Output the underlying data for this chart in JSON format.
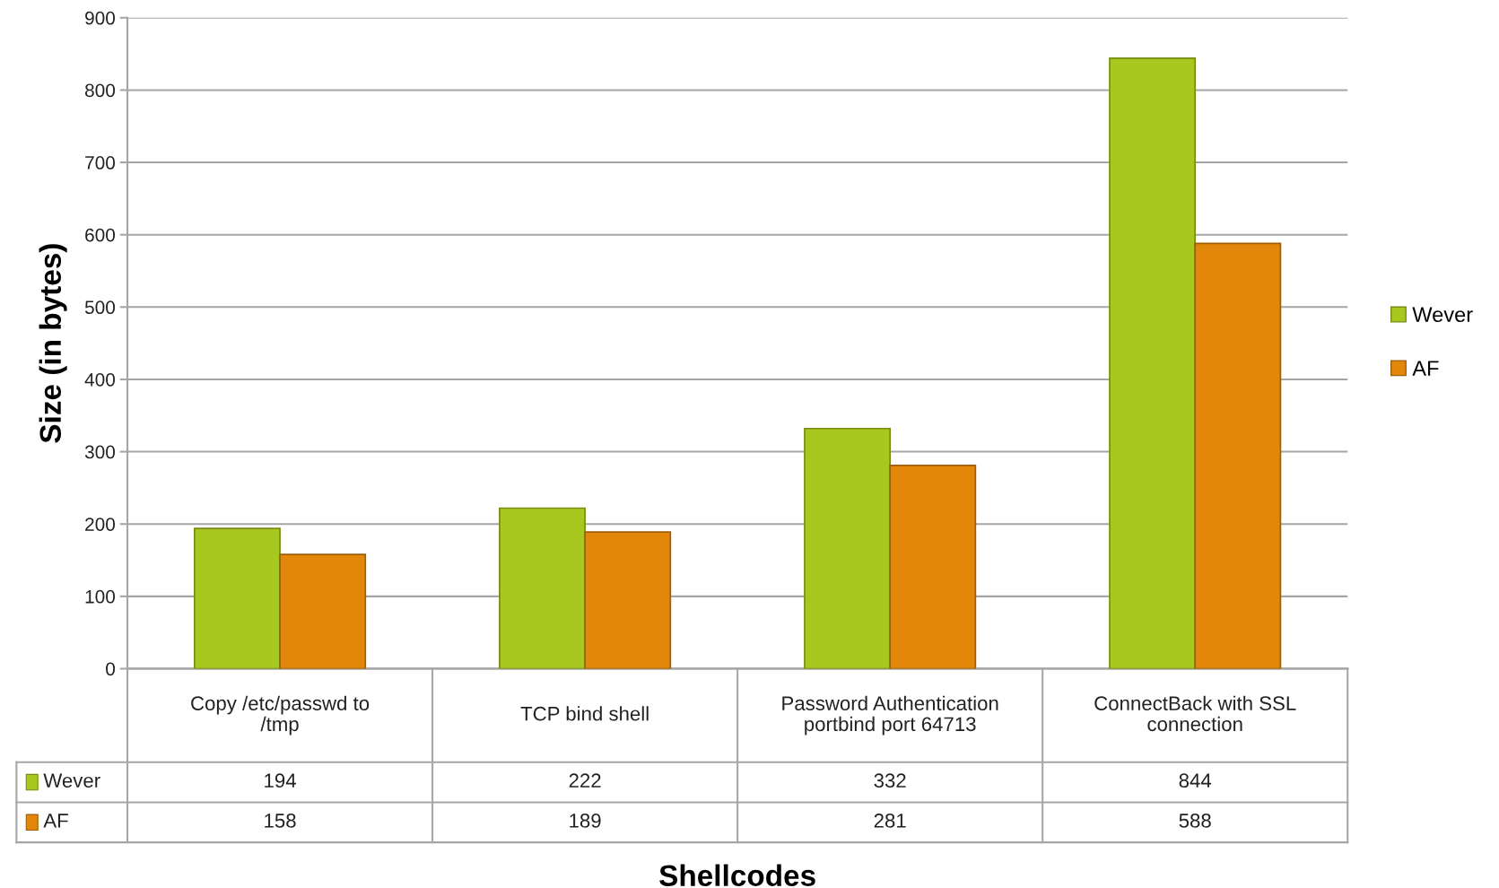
{
  "chart_data": {
    "type": "bar",
    "xlabel": "Shellcodes",
    "ylabel": "Size (in bytes)",
    "categories": [
      "Copy /etc/passwd to /tmp",
      "TCP bind shell",
      "Password Authentication portbind port 64713",
      "ConnectBack with SSL connection"
    ],
    "series": [
      {
        "name": "Wever",
        "color": "#a9c81f",
        "values": [
          194,
          222,
          332,
          844
        ]
      },
      {
        "name": "AF",
        "color": "#e3870a",
        "values": [
          158,
          189,
          281,
          588
        ]
      }
    ],
    "ylim": [
      0,
      900
    ],
    "yticks": [
      0,
      100,
      200,
      300,
      400,
      500,
      600,
      700,
      800,
      900
    ],
    "grid": "y",
    "legend": "right",
    "data_labels": true
  }
}
